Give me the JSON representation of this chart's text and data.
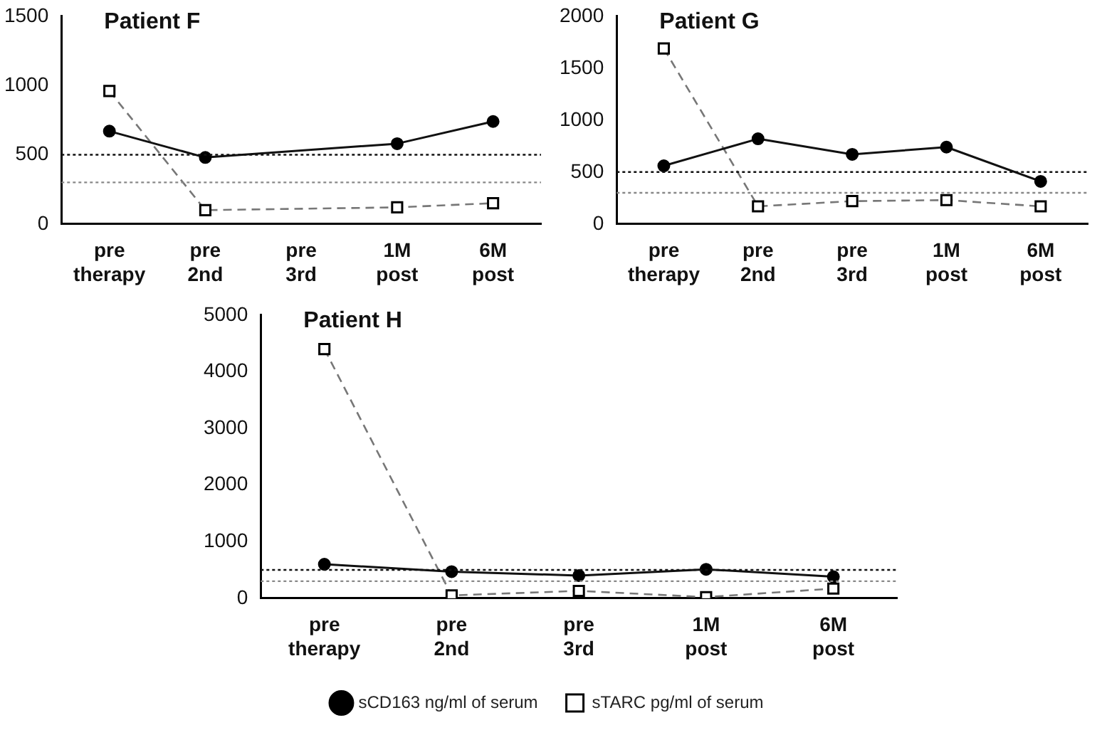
{
  "chart_data": [
    {
      "type": "line",
      "title": "Patient F",
      "categories": [
        "pre therapy",
        "pre 2nd",
        "pre 3rd",
        "1M post",
        "6M post"
      ],
      "ylim": [
        0,
        1500
      ],
      "yticks": [
        0,
        500,
        1000,
        1500
      ],
      "grid": false,
      "legend": false,
      "series": [
        {
          "color": "#111111",
          "marker": "circle",
          "line_style": "solid",
          "values": [
            670,
            480,
            null,
            580,
            740
          ]
        },
        {
          "color": "#777777",
          "marker": "square",
          "line_style": "dashed",
          "values": [
            960,
            100,
            null,
            120,
            150
          ]
        }
      ],
      "ref_lines": [
        {
          "axis": "y",
          "value": 500,
          "color": "#111111",
          "line_style": "dotted"
        },
        {
          "axis": "y",
          "value": 300,
          "color": "#888888",
          "line_style": "dotted"
        }
      ]
    },
    {
      "type": "line",
      "title": "Patient G",
      "categories": [
        "pre therapy",
        "pre 2nd",
        "pre 3rd",
        "1M post",
        "6M post"
      ],
      "ylim": [
        0,
        2000
      ],
      "yticks": [
        0,
        500,
        1000,
        1500,
        2000
      ],
      "grid": false,
      "legend": false,
      "series": [
        {
          "color": "#111111",
          "marker": "circle",
          "line_style": "solid",
          "values": [
            560,
            820,
            670,
            740,
            410
          ]
        },
        {
          "color": "#777777",
          "marker": "square",
          "line_style": "dashed",
          "values": [
            1690,
            170,
            220,
            230,
            170
          ]
        }
      ],
      "ref_lines": [
        {
          "axis": "y",
          "value": 500,
          "color": "#111111",
          "line_style": "dotted"
        },
        {
          "axis": "y",
          "value": 300,
          "color": "#888888",
          "line_style": "dotted"
        }
      ]
    },
    {
      "type": "line",
      "title": "Patient H",
      "categories": [
        "pre therapy",
        "pre 2nd",
        "pre 3rd",
        "1M post",
        "6M post"
      ],
      "ylim": [
        0,
        5000
      ],
      "yticks": [
        0,
        1000,
        2000,
        3000,
        4000,
        5000
      ],
      "grid": false,
      "legend": "bottom",
      "series": [
        {
          "name": "sCD163 ng/ml of serum",
          "color": "#111111",
          "marker": "circle",
          "line_style": "solid",
          "values": [
            600,
            470,
            400,
            510,
            380
          ]
        },
        {
          "name": "sTARC pg/ml of serum",
          "color": "#777777",
          "marker": "square",
          "line_style": "dashed",
          "values": [
            4400,
            50,
            130,
            20,
            170
          ]
        }
      ],
      "ref_lines": [
        {
          "axis": "y",
          "value": 500,
          "color": "#111111",
          "line_style": "dotted"
        },
        {
          "axis": "y",
          "value": 300,
          "color": "#888888",
          "line_style": "dotted"
        }
      ]
    }
  ]
}
